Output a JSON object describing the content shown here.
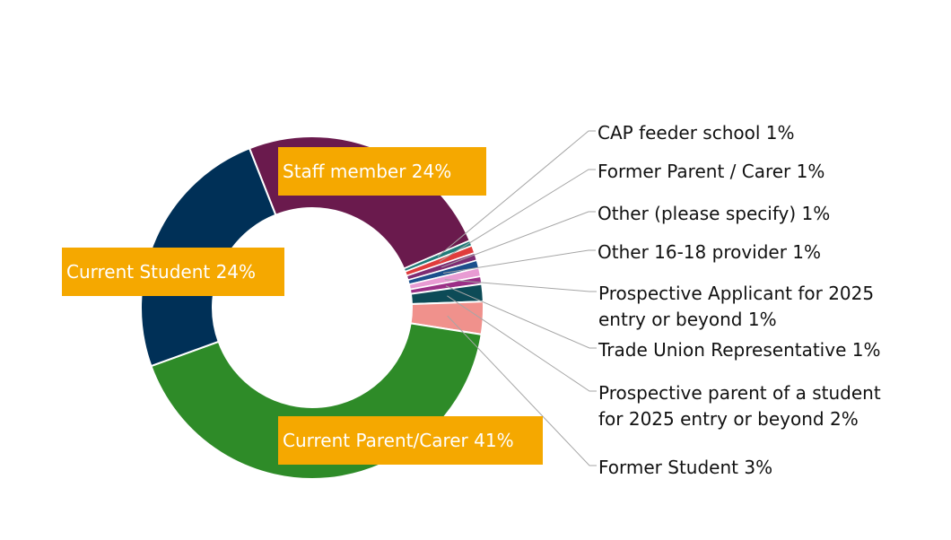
{
  "chart_data": {
    "type": "pie",
    "style": "donut",
    "title": "",
    "slices": [
      {
        "label": "Staff member",
        "display": "Staff member 24%",
        "value": 24,
        "color": "#6a1a4d",
        "label_style": "box"
      },
      {
        "label": "CAP feeder school",
        "display": [
          "CAP feeder school 1%"
        ],
        "value": 0.5,
        "color": "#1f7a78",
        "label_style": "leader"
      },
      {
        "label": "Former Parent / Carer",
        "display": [
          "Former Parent / Carer 1%"
        ],
        "value": 0.7,
        "color": "#e03c3c",
        "label_style": "leader"
      },
      {
        "label": "Other (please specify)",
        "display": [
          "Other (please specify) 1%"
        ],
        "value": 0.7,
        "color": "#7e2c73",
        "label_style": "leader"
      },
      {
        "label": "Other 16-18 provider",
        "display": [
          "Other 16-18 provider 1%"
        ],
        "value": 0.7,
        "color": "#1b4f8c",
        "label_style": "leader"
      },
      {
        "label": "Prospective Applicant for 2025 entry or beyond",
        "display": [
          "Prospective Applicant for 2025",
          "entry or beyond 1%"
        ],
        "value": 0.8,
        "color": "#e89bd3",
        "label_style": "leader"
      },
      {
        "label": "Trade Union Representative",
        "display": [
          "Trade Union Representative 1%"
        ],
        "value": 0.7,
        "color": "#9b2f86",
        "label_style": "leader"
      },
      {
        "label": "Prospective parent of a student for 2025 entry or beyond",
        "display": [
          "Prospective parent of a student",
          "for 2025 entry or beyond 2%"
        ],
        "value": 1.6,
        "color": "#0d4b57",
        "label_style": "leader"
      },
      {
        "label": "Former Student",
        "display": [
          "Former Student 3%"
        ],
        "value": 3.0,
        "color": "#f0918c",
        "label_style": "leader"
      },
      {
        "label": "Current Parent/Carer",
        "display": "Current Parent/Carer 41%",
        "value": 41,
        "color": "#2e8b28",
        "label_style": "box"
      },
      {
        "label": "Current Student",
        "display": "Current Student 24%",
        "value": 24,
        "color": "#003057",
        "label_style": "box"
      }
    ],
    "label_box_color": "#f5a800",
    "leader_line_color": "#a6a6a6"
  }
}
